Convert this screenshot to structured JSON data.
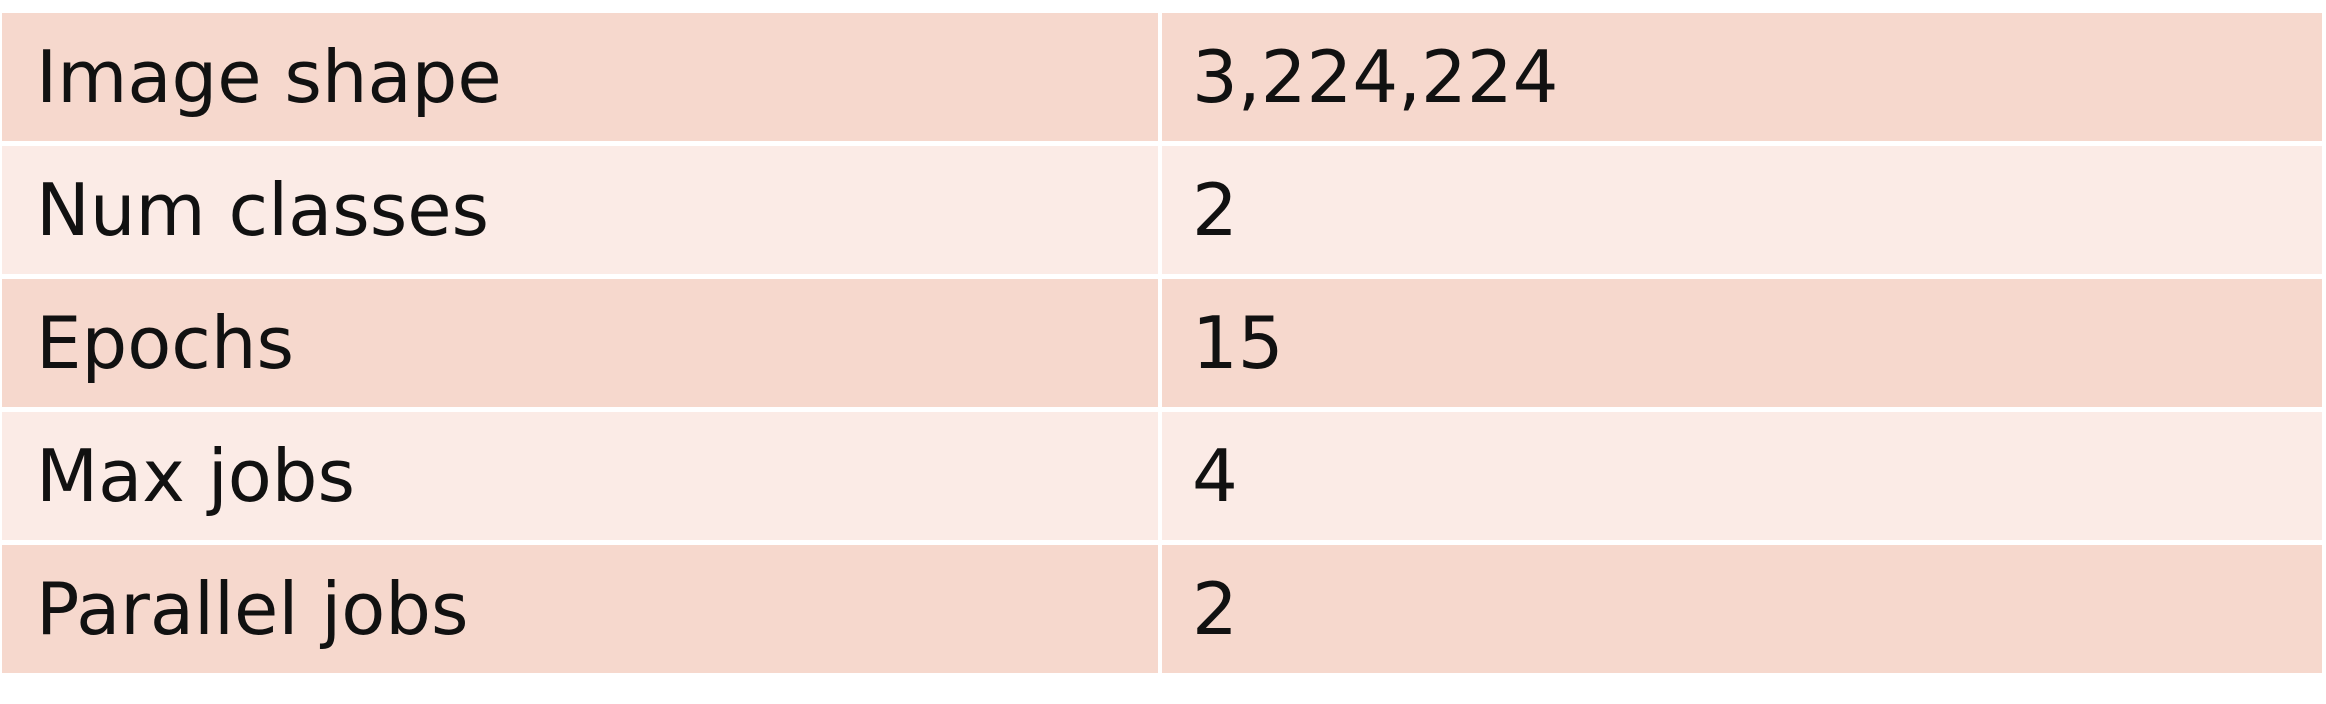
{
  "table": {
    "rows": [
      {
        "label": "Image shape",
        "value": "3,224,224"
      },
      {
        "label": "Num classes",
        "value": "2"
      },
      {
        "label": "Epochs",
        "value": "15"
      },
      {
        "label": "Max jobs",
        "value": "4"
      },
      {
        "label": "Parallel jobs",
        "value": "2"
      }
    ]
  },
  "colors": {
    "row_dark": "#f6d8cd",
    "row_light": "#fbebe6",
    "text": "#111111",
    "divider": "#ffffff"
  }
}
